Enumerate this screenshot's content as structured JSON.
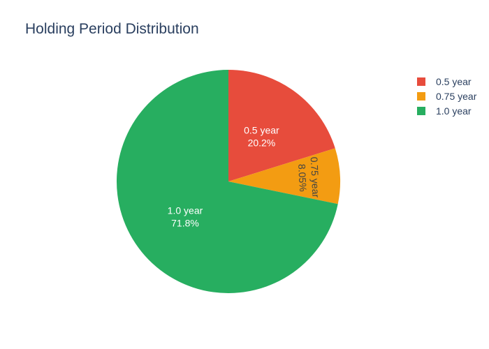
{
  "chart_data": {
    "type": "pie",
    "title": "Holding Period Distribution",
    "categories": [
      "0.5 year",
      "0.75 year",
      "1.0 year"
    ],
    "values": [
      20.2,
      8.05,
      71.8
    ],
    "percent_labels": [
      "20.2%",
      "8.05%",
      "71.8%"
    ],
    "colors": [
      "#e74c3c",
      "#f39c12",
      "#27ae60"
    ],
    "legend_position": "top-right"
  }
}
